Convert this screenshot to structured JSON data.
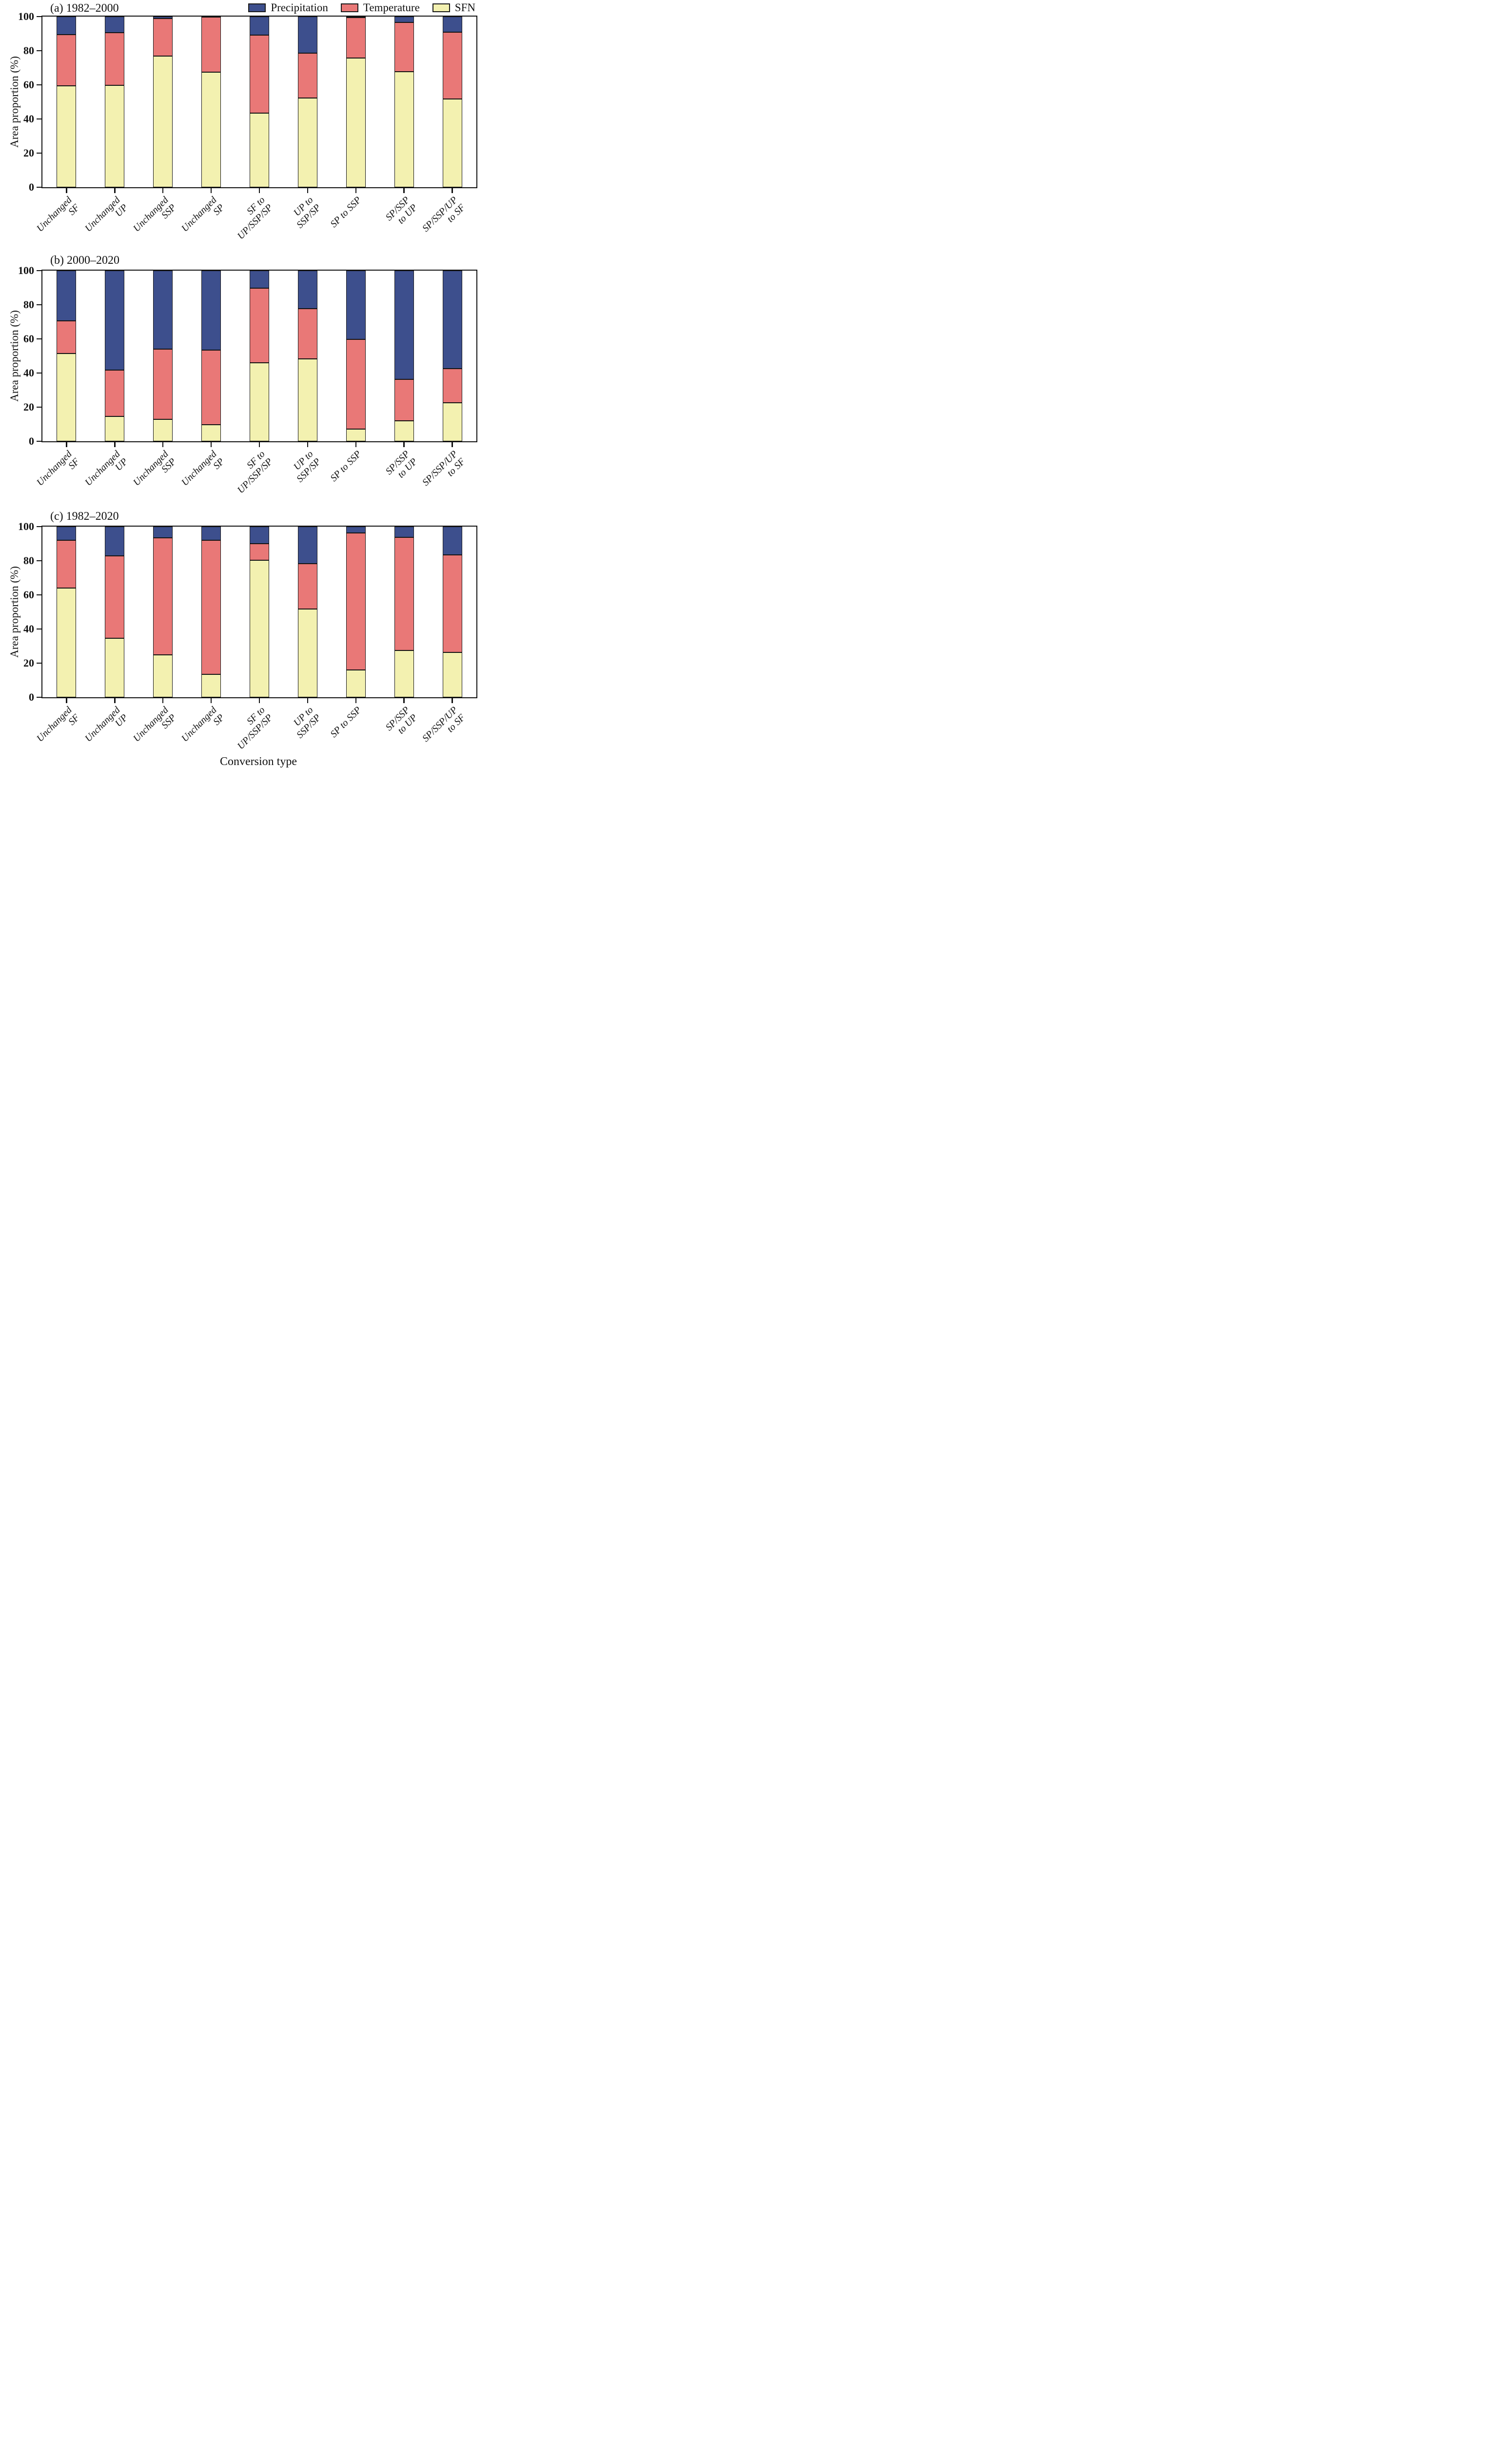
{
  "colors": {
    "precipitation": "#3D4F8D",
    "temperature": "#E97877",
    "sfn": "#F3F1B0",
    "outline": "#151515"
  },
  "legend": {
    "entries": [
      {
        "label": "Precipitation",
        "color_key": "precipitation"
      },
      {
        "label": "Temperature",
        "color_key": "temperature"
      },
      {
        "label": "SFN",
        "color_key": "sfn"
      }
    ]
  },
  "y_axis": {
    "label": "Area proportion (%)",
    "ticks": [
      0,
      20,
      40,
      60,
      80,
      100
    ],
    "max": 100
  },
  "x_axis": {
    "title": "Conversion type"
  },
  "chart_data": [
    {
      "type": "bar",
      "stacked": true,
      "title": "(a) 1982–2000",
      "ylabel": "Area proportion (%)",
      "ylim": [
        0,
        100
      ],
      "grid": false,
      "legend_position": "top-right",
      "categories": [
        "Unchanged SF",
        "Unchanged UP",
        "Unchanged SSP",
        "Unchanged SP",
        "SF to UP/SSP/SP",
        "UP to SSP/SP",
        "SP to SSP",
        "SP/SSP to UP",
        "SP/SSP/UP to SF"
      ],
      "category_lines": [
        [
          "Unchanged",
          "SF"
        ],
        [
          "Unchanged",
          "UP"
        ],
        [
          "Unchanged",
          "SSP"
        ],
        [
          "Unchanged",
          "SP"
        ],
        [
          "SF to",
          "UP/SSP/SP"
        ],
        [
          "UP to",
          "SSP/SP"
        ],
        [
          "SP to SSP"
        ],
        [
          "SP/SSP",
          "to UP"
        ],
        [
          "SP/SSP/UP",
          "to SF"
        ]
      ],
      "series": [
        {
          "name": "SFN",
          "values": [
            59.3,
            59.6,
            76.9,
            67.4,
            43.5,
            52.4,
            75.8,
            67.7,
            51.8
          ]
        },
        {
          "name": "Temperature",
          "values": [
            30.1,
            30.9,
            21.9,
            32.3,
            45.7,
            26.2,
            23.7,
            29.0,
            39.1
          ]
        },
        {
          "name": "Precipitation",
          "values": [
            10.6,
            9.5,
            1.2,
            0.3,
            10.8,
            21.4,
            0.5,
            3.3,
            9.1
          ]
        }
      ]
    },
    {
      "type": "bar",
      "stacked": true,
      "title": "(b) 2000–2020",
      "ylabel": "Area proportion (%)",
      "ylim": [
        0,
        100
      ],
      "grid": false,
      "categories": [
        "Unchanged SF",
        "Unchanged UP",
        "Unchanged SSP",
        "Unchanged SP",
        "SF to UP/SSP/SP",
        "UP to SSP/SP",
        "SP to SSP",
        "SP/SSP to UP",
        "SP/SSP/UP to SF"
      ],
      "category_lines": [
        [
          "Unchanged",
          "SF"
        ],
        [
          "Unchanged",
          "UP"
        ],
        [
          "Unchanged",
          "SSP"
        ],
        [
          "Unchanged",
          "SP"
        ],
        [
          "SF to",
          "UP/SSP/SP"
        ],
        [
          "UP to",
          "SSP/SP"
        ],
        [
          "SP to SSP"
        ],
        [
          "SP/SSP",
          "to UP"
        ],
        [
          "SP/SSP/UP",
          "to SF"
        ]
      ],
      "series": [
        {
          "name": "SFN",
          "values": [
            51.4,
            14.7,
            13.0,
            9.8,
            46.1,
            48.3,
            7.2,
            11.9,
            22.6
          ]
        },
        {
          "name": "Temperature",
          "values": [
            19.1,
            27.0,
            41.0,
            43.5,
            43.6,
            29.5,
            52.4,
            24.4,
            20.1
          ]
        },
        {
          "name": "Precipitation",
          "values": [
            29.5,
            58.3,
            46.0,
            46.7,
            10.3,
            22.2,
            40.4,
            63.7,
            57.3
          ]
        }
      ]
    },
    {
      "type": "bar",
      "stacked": true,
      "title": "(c) 1982–2020",
      "ylabel": "Area proportion (%)",
      "ylim": [
        0,
        100
      ],
      "grid": false,
      "xlabel": "Conversion type",
      "categories": [
        "Unchanged SF",
        "Unchanged UP",
        "Unchanged SSP",
        "Unchanged SP",
        "SF to UP/SSP/SP",
        "UP to SSP/SP",
        "SP to SSP",
        "SP/SSP to UP",
        "SP/SSP/UP to SF"
      ],
      "category_lines": [
        [
          "Unchanged",
          "SF"
        ],
        [
          "Unchanged",
          "UP"
        ],
        [
          "Unchanged",
          "SSP"
        ],
        [
          "Unchanged",
          "SP"
        ],
        [
          "SF to",
          "UP/SSP/SP"
        ],
        [
          "UP to",
          "SSP/SP"
        ],
        [
          "SP to SSP"
        ],
        [
          "SP/SSP",
          "to UP"
        ],
        [
          "SP/SSP/UP",
          "to SF"
        ]
      ],
      "series": [
        {
          "name": "SFN",
          "values": [
            64.0,
            34.6,
            25.0,
            13.3,
            80.4,
            51.7,
            16.1,
            27.3,
            26.3
          ]
        },
        {
          "name": "Temperature",
          "values": [
            28.0,
            48.2,
            68.4,
            78.7,
            9.6,
            26.6,
            80.3,
            66.5,
            57.2
          ]
        },
        {
          "name": "Precipitation",
          "values": [
            8.0,
            17.2,
            6.6,
            8.0,
            10.0,
            21.7,
            3.6,
            6.2,
            16.5
          ]
        }
      ]
    }
  ]
}
